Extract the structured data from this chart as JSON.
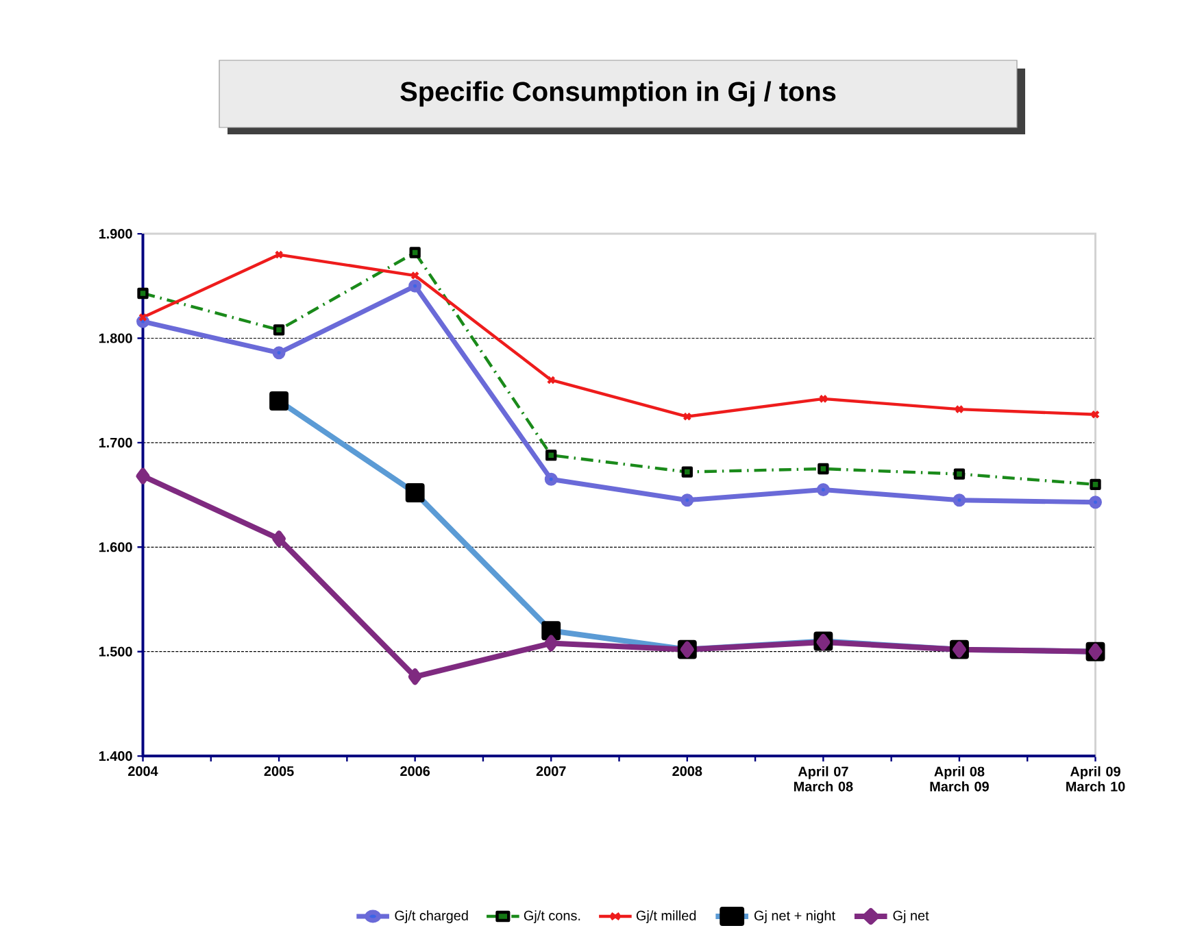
{
  "chart_data": {
    "type": "line",
    "title": "Specific Consumption in Gj / tons",
    "categories": [
      "2004",
      "2005",
      "2006",
      "2007",
      "2008",
      "April 07 March 08",
      "April 08 March 09",
      "April 09 March 10"
    ],
    "series": [
      {
        "name": "Gj/t charged",
        "color": "#6a6ad8",
        "marker": "circle",
        "line_style": "solid",
        "values": [
          1.816,
          1.786,
          1.85,
          1.665,
          1.645,
          1.655,
          1.645,
          1.643
        ]
      },
      {
        "name": "Gj/t cons.",
        "color": "#1a8a1a",
        "marker": "square",
        "line_style": "dashed",
        "values": [
          1.843,
          1.808,
          1.882,
          1.688,
          1.672,
          1.675,
          1.67,
          1.66
        ]
      },
      {
        "name": "Gj/t milled",
        "color": "#ee1c1c",
        "marker": "cross",
        "line_style": "solid",
        "values": [
          1.82,
          1.88,
          1.86,
          1.76,
          1.725,
          1.742,
          1.732,
          1.727
        ]
      },
      {
        "name": "Gj net + night",
        "color": "#5b9bd5",
        "marker": "square",
        "line_style": "solid",
        "values": [
          null,
          1.74,
          1.652,
          1.52,
          1.502,
          1.51,
          1.502,
          1.5
        ]
      },
      {
        "name": "Gj net",
        "color": "#7f2a80",
        "marker": "diamond",
        "line_style": "solid",
        "values": [
          1.668,
          1.608,
          1.476,
          1.508,
          1.502,
          1.509,
          1.502,
          1.5
        ]
      }
    ],
    "ylim": [
      1.4,
      1.9
    ],
    "yticks": [
      {
        "value": 1.4,
        "label": "1.400"
      },
      {
        "value": 1.5,
        "label": "1.500"
      },
      {
        "value": 1.6,
        "label": "1.600"
      },
      {
        "value": 1.7,
        "label": "1.700"
      },
      {
        "value": 1.8,
        "label": "1.800"
      },
      {
        "value": 1.9,
        "label": "1.900"
      }
    ],
    "grid": "y",
    "legend": "bottom"
  }
}
